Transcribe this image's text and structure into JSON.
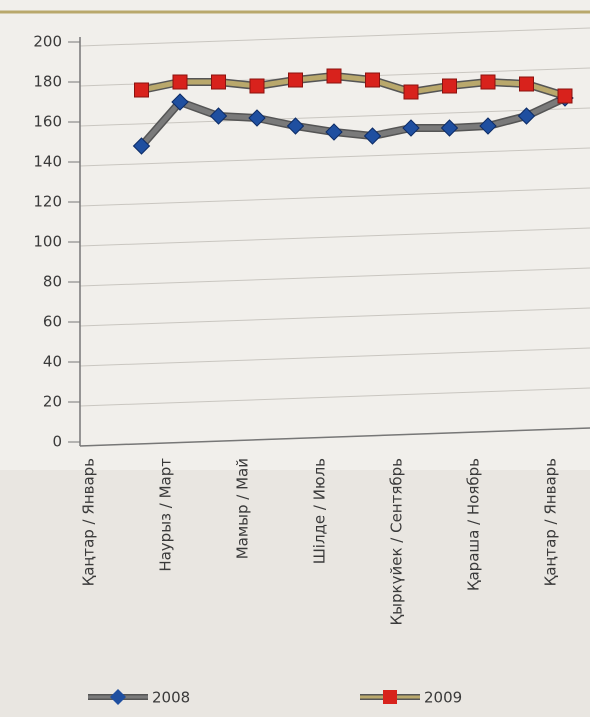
{
  "chart_data": {
    "type": "line",
    "categories": [
      "Қаңтар / Январь",
      null,
      "Наурыз / Март",
      null,
      "Мамыр / Май",
      null,
      "Шілде / Июль",
      null,
      "Қыркүйек / Сентябрь",
      null,
      "Қараша / Ноябрь",
      null,
      "Қаңтар / Январь"
    ],
    "series": [
      {
        "name": "2008",
        "color": "#1f4fa0",
        "line_color": "#7a7a7a",
        "marker": "diamond",
        "values": [
          null,
          148,
          170,
          163,
          162,
          158,
          155,
          153,
          157,
          157,
          158,
          163,
          172
        ]
      },
      {
        "name": "2009",
        "color": "#d8221c",
        "line_color": "#b9a86c",
        "marker": "square",
        "values": [
          null,
          176,
          180,
          180,
          178,
          181,
          183,
          181,
          175,
          178,
          180,
          179,
          173
        ]
      }
    ],
    "ylim": [
      0,
      200
    ],
    "yticks": [
      0,
      20,
      40,
      60,
      80,
      100,
      120,
      140,
      160,
      180,
      200
    ],
    "grid": true,
    "legend": "bottom"
  }
}
